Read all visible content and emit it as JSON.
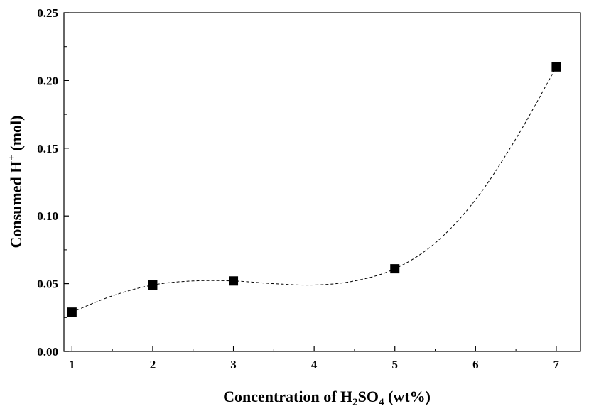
{
  "chart_data": {
    "type": "scatter",
    "title": "",
    "xlabel": {
      "before": "Concentration of H",
      "sub": "2",
      "middle": "SO",
      "sub2": "4",
      "after": " (wt%)"
    },
    "ylabel": {
      "before": "Consumed H",
      "sup": "+",
      "after": " (mol)"
    },
    "xlim": [
      0.9,
      7.3
    ],
    "ylim": [
      0,
      0.25
    ],
    "x_ticks": [
      1,
      2,
      3,
      4,
      5,
      6,
      7
    ],
    "x_tick_labels": [
      "1",
      "2",
      "3",
      "4",
      "5",
      "6",
      "7"
    ],
    "y_ticks": [
      0,
      0.05,
      0.1,
      0.15,
      0.2,
      0.25
    ],
    "y_tick_labels": [
      "0.00",
      "0.05",
      "0.10",
      "0.15",
      "0.20",
      "0.25"
    ],
    "grid": false,
    "series": [
      {
        "marker": "square",
        "color": "#000000",
        "x": [
          1,
          2,
          3,
          5,
          7
        ],
        "y": [
          0.029,
          0.049,
          0.052,
          0.061,
          0.21
        ]
      }
    ],
    "fit_line": {
      "style": "dashed",
      "color": "#000000",
      "x": [
        1,
        1.5,
        2,
        2.5,
        3,
        3.5,
        4,
        4.5,
        5,
        5.5,
        6,
        6.5,
        7
      ],
      "y": [
        0.029,
        0.041,
        0.049,
        0.052,
        0.052,
        0.05,
        0.049,
        0.052,
        0.061,
        0.08,
        0.112,
        0.157,
        0.21
      ]
    }
  }
}
